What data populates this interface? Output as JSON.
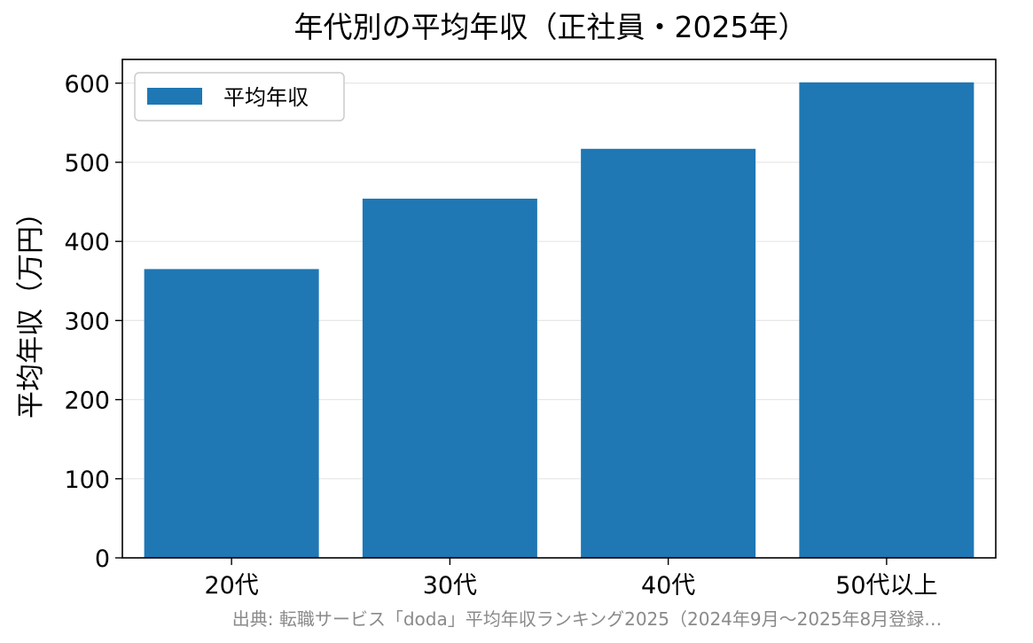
{
  "chart_data": {
    "type": "bar",
    "title": "年代別の平均年収（正社員・2025年）",
    "categories": [
      "20代",
      "30代",
      "40代",
      "50代以上"
    ],
    "series": [
      {
        "name": "平均年収",
        "values": [
          365,
          454,
          517,
          601
        ],
        "color": "#1f77b4"
      }
    ],
    "xlabel": "",
    "ylabel": "平均年収（万円）",
    "ylim": [
      0,
      630
    ],
    "yticks": [
      0,
      100,
      200,
      300,
      400,
      500,
      600
    ],
    "grid": "horizontal",
    "legend_position": "top-left",
    "source": "出典: 転職サービス「doda」平均年収ランキング2025（2024年9月～2025年8月登録…"
  }
}
